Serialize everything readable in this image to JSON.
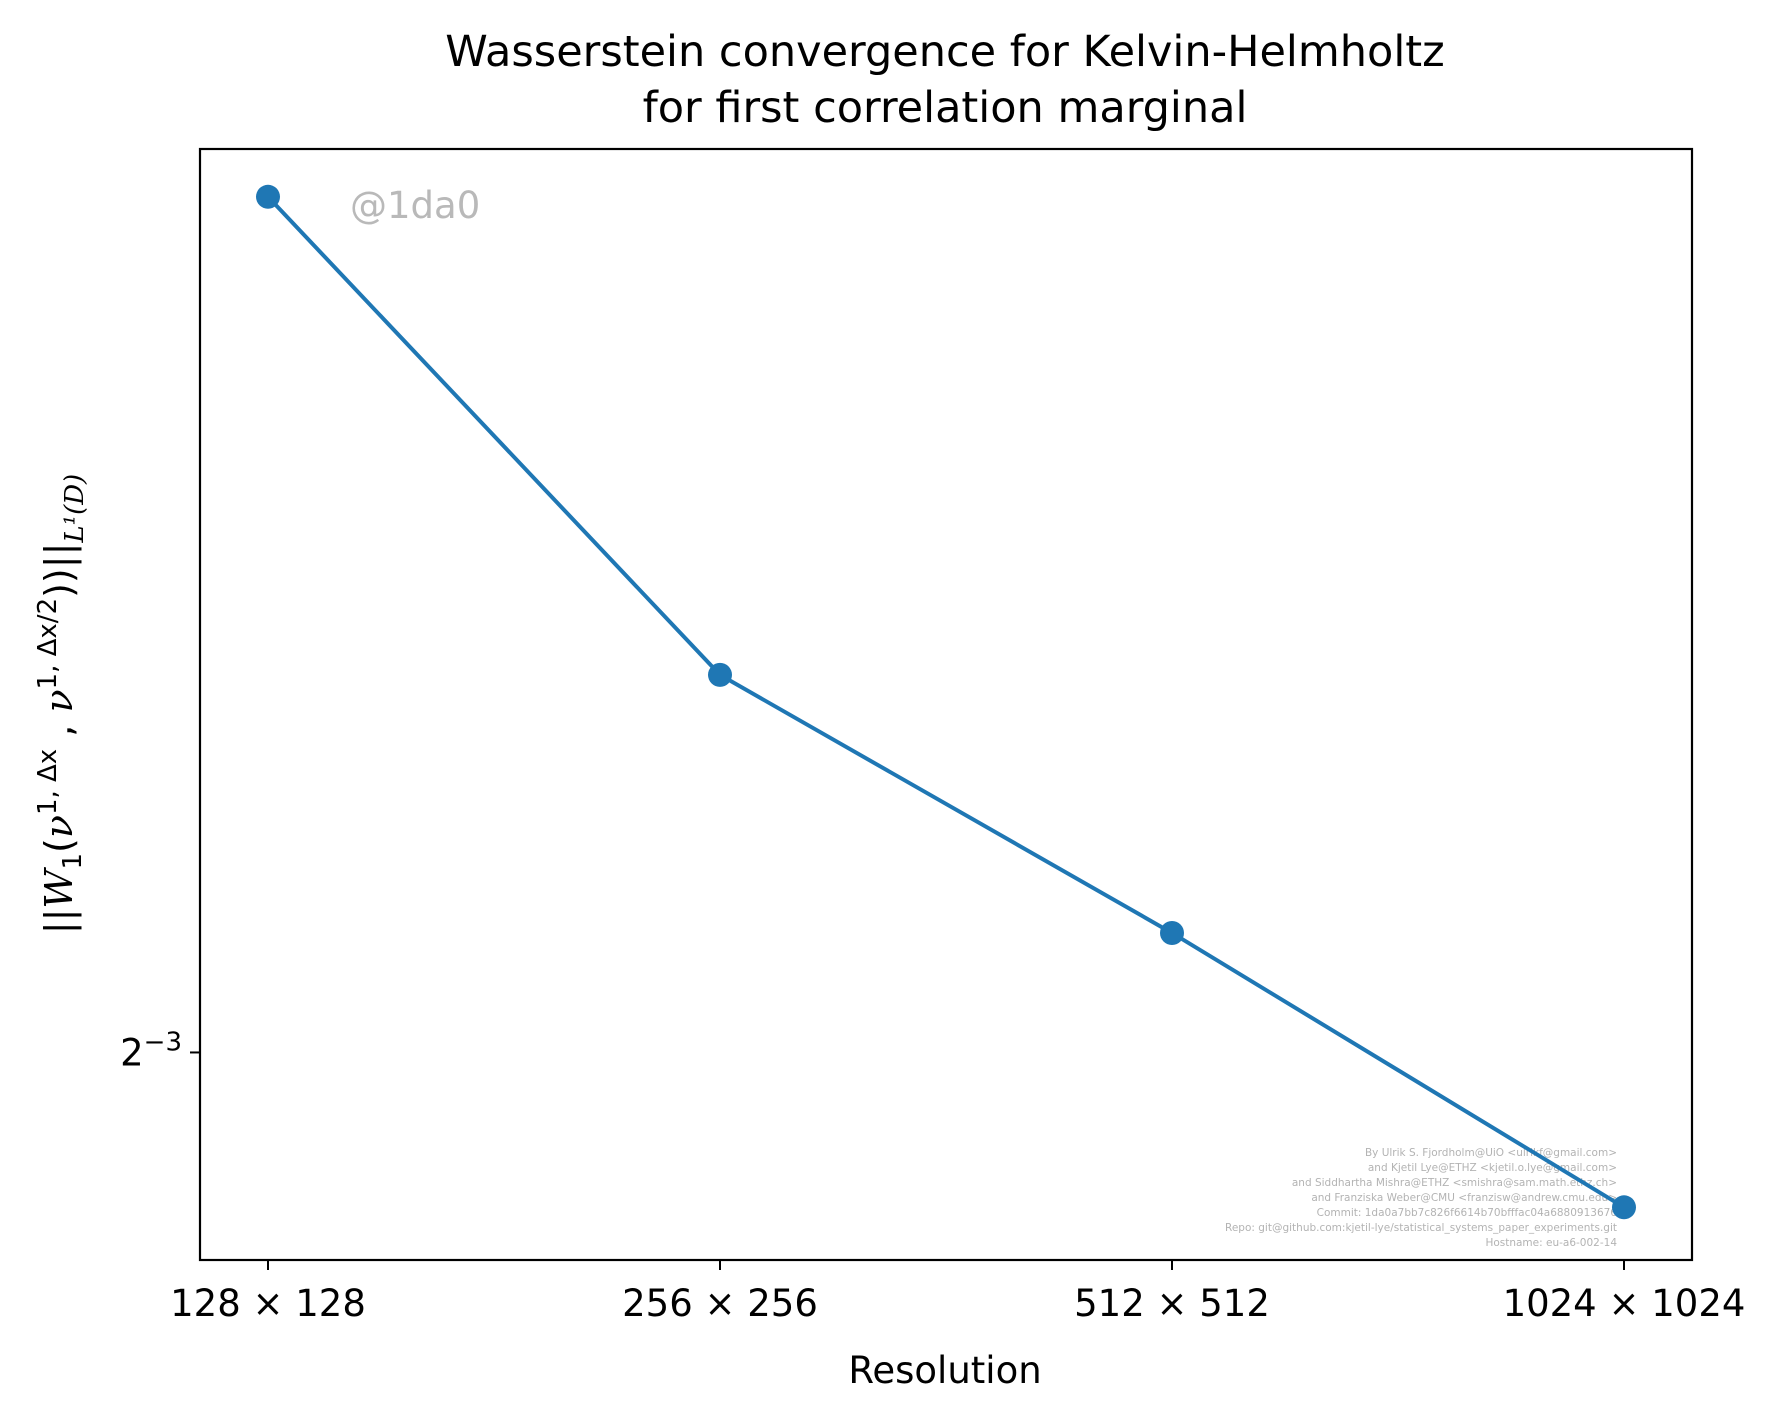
{
  "chart_data": {
    "type": "line",
    "title_lines": [
      "Wasserstein convergence for Kelvin-Helmholtz",
      "for first correlation marginal"
    ],
    "xlabel": "Resolution",
    "ylabel": {
      "open": "||",
      "W": "W",
      "W_sub": "1",
      "paren_open": "(",
      "nu1": "ν",
      "nu1_sup": "1, Δx",
      "comma": " , ",
      "nu2": "ν",
      "nu2_sup": "1, Δx/2",
      "paren_close": "))",
      "close": "||",
      "norm_sub": "L¹(D)"
    },
    "categories": [
      "128 × 128",
      "256 × 256",
      "512 × 512",
      "1024 × 1024"
    ],
    "x_scale": "log2",
    "x": [
      128,
      256,
      512,
      1024
    ],
    "y_scale": "log2",
    "yticks": [
      {
        "base": "2",
        "exp": "−3",
        "value": 0.125
      }
    ],
    "series": [
      {
        "color": "#1f77b4",
        "marker": "circle",
        "values": [
          0.241,
          0.167,
          0.137,
          0.111
        ]
      }
    ],
    "ylim": [
      0.1066,
      0.25
    ],
    "grid": false,
    "watermark": "@1da0",
    "credits": [
      "By Ulrik S. Fjordholm@UiO <ulrikf@gmail.com>",
      "and Kjetil Lye@ETHZ <kjetil.o.lye@gmail.com>",
      "and Siddhartha Mishra@ETHZ <smishra@sam.math.ethz.ch>",
      "and Franziska Weber@CMU <franzisw@andrew.cmu.edu>",
      "Commit: 1da0a7bb7c826f6614b70bfffac04a6880913676",
      "Repo: git@github.com:kjetil-lye/statistical_systems_paper_experiments.git",
      "Hostname: eu-a6-002-14"
    ]
  }
}
